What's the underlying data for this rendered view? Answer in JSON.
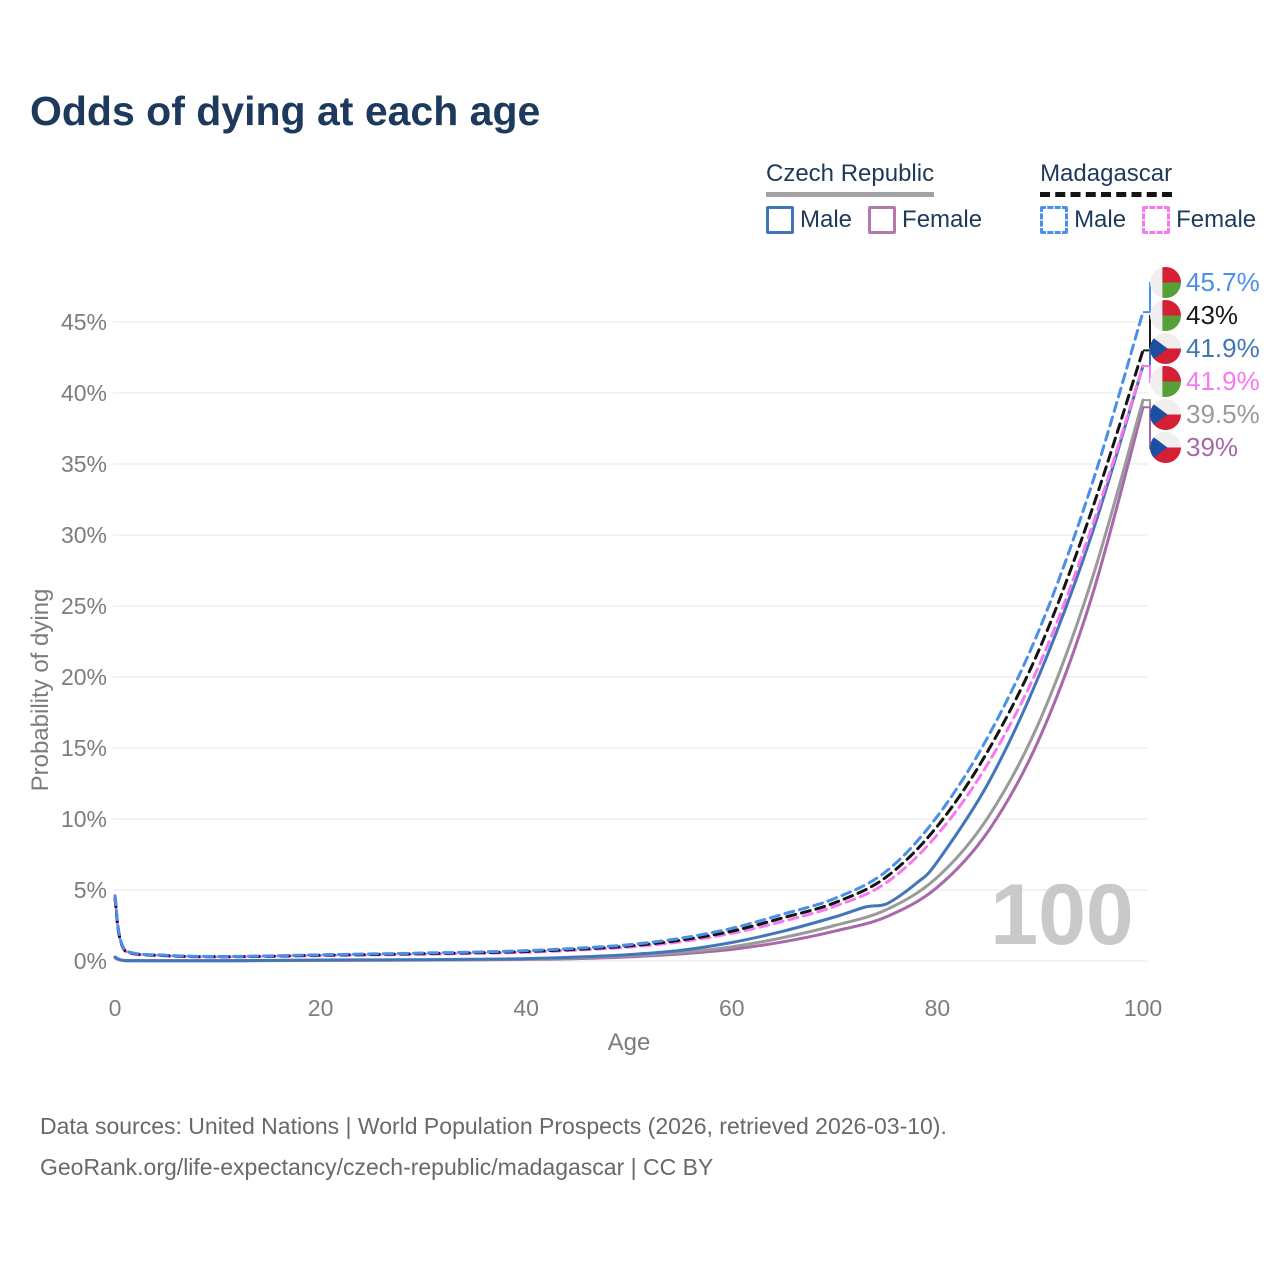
{
  "title": "Odds of dying at each age",
  "legend": {
    "groups": [
      {
        "name": "Czech Republic",
        "line_style": "solid",
        "underline_color": "#a2a2a2",
        "items": [
          {
            "label": "Male",
            "color": "#4376b8"
          },
          {
            "label": "Female",
            "color": "#b279ad"
          }
        ]
      },
      {
        "name": "Madagascar",
        "line_style": "dashed",
        "underline_color": "#141414",
        "items": [
          {
            "label": "Male",
            "color": "#4a8fe8"
          },
          {
            "label": "Female",
            "color": "#f879ef"
          }
        ]
      }
    ]
  },
  "chart_data": {
    "type": "line",
    "title": "Odds of dying at each age",
    "xlabel": "Age",
    "ylabel": "Probability of dying",
    "xlim": [
      0,
      100
    ],
    "ylim_percent": [
      0,
      47
    ],
    "grid": "horizontal",
    "legend_position": "top-right",
    "x_ticks": [
      0,
      20,
      40,
      60,
      80,
      100
    ],
    "x_tick_labels": [
      "0",
      "20",
      "40",
      "60",
      "80",
      "100"
    ],
    "y_ticks": [
      0,
      5,
      10,
      15,
      20,
      25,
      30,
      35,
      40,
      45
    ],
    "y_tick_labels": [
      "0%",
      "5%",
      "10%",
      "15%",
      "20%",
      "25%",
      "30%",
      "35%",
      "40%",
      "45%"
    ],
    "watermark_age": "100",
    "series": [
      {
        "name": "czech_republic_female",
        "label": "Czech Republic Female",
        "color": "#a868ab",
        "dash": false,
        "x": [
          0,
          1,
          5,
          10,
          15,
          20,
          25,
          30,
          35,
          40,
          45,
          50,
          55,
          60,
          65,
          70,
          75,
          80,
          85,
          90,
          95,
          100
        ],
        "y_percent": [
          0.22,
          0.024,
          0.015,
          0.015,
          0.028,
          0.04,
          0.05,
          0.06,
          0.08,
          0.11,
          0.17,
          0.29,
          0.5,
          0.82,
          1.35,
          2.1,
          3.1,
          5.2,
          9.2,
          15.8,
          25.6,
          39.0
        ]
      },
      {
        "name": "czech_republic_both",
        "label": "Czech Republic",
        "color": "#9a9a9a",
        "dash": false,
        "x": [
          0,
          1,
          5,
          10,
          15,
          20,
          25,
          30,
          35,
          40,
          45,
          50,
          55,
          60,
          65,
          70,
          75,
          80,
          85,
          90,
          95,
          100
        ],
        "y_percent": [
          0.25,
          0.027,
          0.018,
          0.018,
          0.035,
          0.055,
          0.065,
          0.075,
          0.1,
          0.14,
          0.22,
          0.36,
          0.6,
          1.0,
          1.65,
          2.5,
          3.6,
          5.9,
          10.2,
          17.0,
          26.8,
          39.5
        ]
      },
      {
        "name": "czech_republic_male",
        "label": "Czech Republic Male",
        "color": "#4376b8",
        "dash": false,
        "x": [
          0,
          1,
          5,
          10,
          15,
          20,
          25,
          30,
          35,
          40,
          45,
          50,
          55,
          60,
          65,
          70,
          73,
          75,
          78,
          80,
          85,
          90,
          95,
          100
        ],
        "y_percent": [
          0.28,
          0.03,
          0.02,
          0.02,
          0.04,
          0.07,
          0.08,
          0.09,
          0.12,
          0.17,
          0.28,
          0.45,
          0.75,
          1.3,
          2.1,
          3.1,
          3.8,
          4.0,
          5.5,
          7.0,
          12.6,
          20.3,
          30.0,
          41.9
        ]
      },
      {
        "name": "madagascar_female",
        "label": "Madagascar Female",
        "color": "#f879ef",
        "dash": true,
        "x": [
          0,
          1,
          5,
          10,
          15,
          20,
          25,
          30,
          35,
          40,
          45,
          50,
          55,
          60,
          65,
          70,
          75,
          80,
          85,
          90,
          95,
          100
        ],
        "y_percent": [
          4.3,
          0.67,
          0.36,
          0.28,
          0.32,
          0.38,
          0.43,
          0.48,
          0.54,
          0.62,
          0.77,
          0.98,
          1.35,
          1.95,
          2.8,
          3.85,
          5.5,
          8.9,
          14.0,
          21.0,
          30.5,
          41.9
        ]
      },
      {
        "name": "madagascar_both",
        "label": "Madagascar",
        "color": "#141414",
        "dash": true,
        "x": [
          0,
          1,
          5,
          10,
          15,
          20,
          25,
          30,
          35,
          40,
          45,
          50,
          55,
          60,
          65,
          70,
          75,
          80,
          85,
          90,
          95,
          100
        ],
        "y_percent": [
          4.45,
          0.71,
          0.38,
          0.3,
          0.34,
          0.41,
          0.46,
          0.52,
          0.58,
          0.67,
          0.83,
          1.06,
          1.47,
          2.1,
          3.05,
          4.1,
          5.9,
          9.5,
          14.9,
          22.1,
          31.7,
          43.0
        ]
      },
      {
        "name": "madagascar_male",
        "label": "Madagascar Male",
        "color": "#4a8fe8",
        "dash": true,
        "x": [
          0,
          1,
          5,
          10,
          15,
          20,
          25,
          30,
          35,
          40,
          45,
          50,
          55,
          60,
          65,
          70,
          75,
          80,
          85,
          90,
          95,
          100
        ],
        "y_percent": [
          4.6,
          0.75,
          0.4,
          0.32,
          0.36,
          0.44,
          0.5,
          0.56,
          0.63,
          0.73,
          0.9,
          1.15,
          1.6,
          2.3,
          3.3,
          4.4,
          6.3,
          10.2,
          15.9,
          23.5,
          33.5,
          45.7
        ]
      }
    ],
    "end_labels": [
      {
        "series": "madagascar_male",
        "value": "45.7%",
        "flag": "madagascar",
        "color": "#4a8fe8"
      },
      {
        "series": "madagascar_both",
        "value": "43%",
        "flag": "madagascar",
        "color": "#1a1a1a"
      },
      {
        "series": "czech_republic_male",
        "value": "41.9%",
        "flag": "czech_republic",
        "color": "#4376b8"
      },
      {
        "series": "madagascar_female",
        "value": "41.9%",
        "flag": "madagascar",
        "color": "#f879ef"
      },
      {
        "series": "czech_republic_both",
        "value": "39.5%",
        "flag": "czech_republic",
        "color": "#9a9a9a"
      },
      {
        "series": "czech_republic_female",
        "value": "39%",
        "flag": "czech_republic",
        "color": "#a569a8"
      }
    ]
  },
  "footer": {
    "line1": "Data sources: United Nations | World Population Prospects (2026, retrieved 2026-03-10).",
    "line2": "GeoRank.org/life-expectancy/czech-republic/madagascar | CC BY"
  }
}
